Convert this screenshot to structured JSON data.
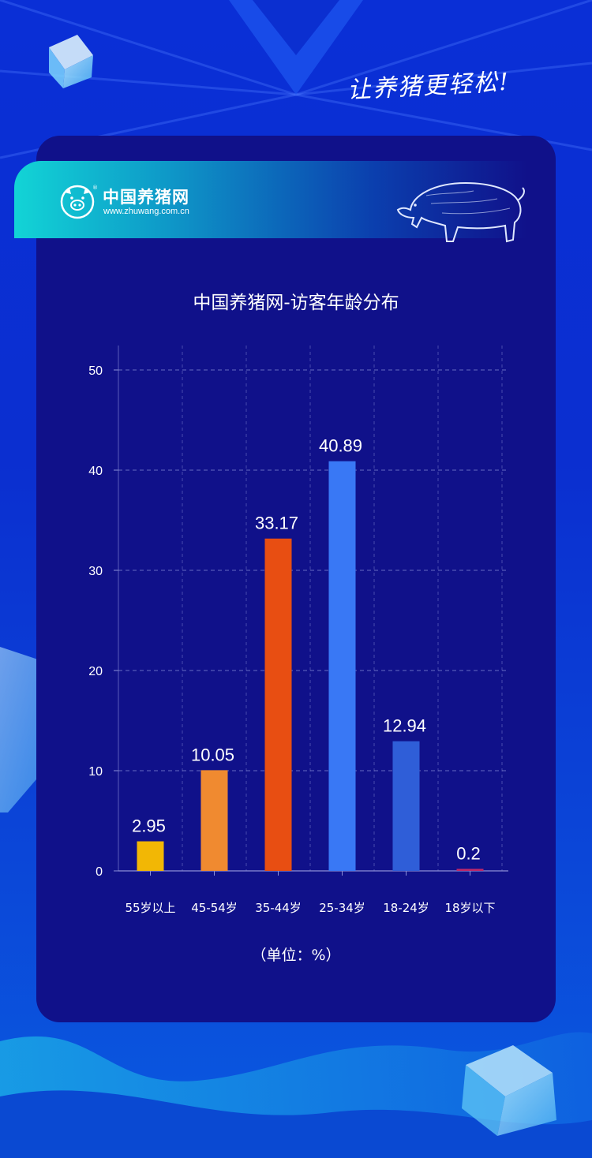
{
  "slogan": "让养猪更轻松!",
  "brand": {
    "name": "中国养猪网",
    "url": "www.zhuwang.com.cn"
  },
  "chart_data": {
    "type": "bar",
    "title": "中国养猪网-访客年龄分布",
    "unit_label": "（单位：%）",
    "categories": [
      "55岁以上",
      "45-54岁",
      "35-44岁",
      "25-34岁",
      "18-24岁",
      "18岁以下"
    ],
    "values": [
      2.95,
      10.05,
      33.17,
      40.89,
      12.94,
      0.2
    ],
    "value_labels": [
      "2.95",
      "10.05",
      "33.17",
      "40.89",
      "12.94",
      "0.2"
    ],
    "colors": [
      "#f2b705",
      "#f08a30",
      "#e84e12",
      "#3978f5",
      "#2f5ed8",
      "#c0286a"
    ],
    "ylim": [
      0,
      50
    ],
    "yticks": [
      0,
      10,
      20,
      30,
      40,
      50
    ],
    "grid": true,
    "xlabel": "",
    "ylabel": ""
  },
  "colors": {
    "card": "#10118a",
    "grid": "#8c91d8",
    "text": "#ffffff"
  }
}
